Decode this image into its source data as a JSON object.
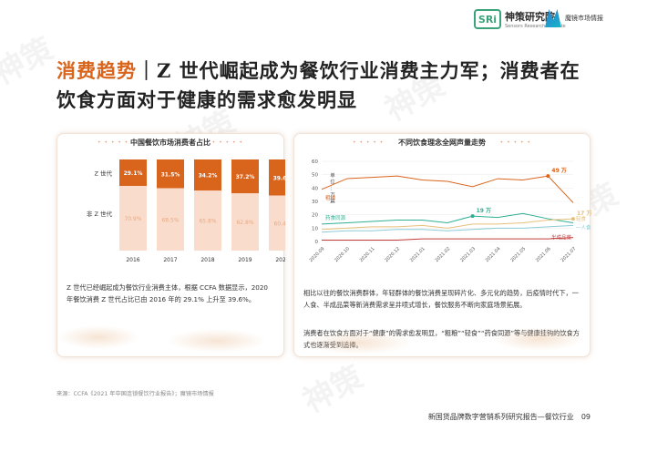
{
  "header": {
    "sr_logo_mark": "SRi",
    "sr_logo_cn": "神策研究院",
    "sr_logo_en": "Sensors Research Institute",
    "mj_logo_cn": "魔镜市场情报"
  },
  "title": {
    "highlight": "消费趋势",
    "separator": "｜",
    "line1_rest": "Z 世代崛起成为餐饮行业消费主力军；消费者在",
    "line2": "饮食方面对于健康的需求愈发明显"
  },
  "left_card": {
    "body": "Z 世代已经崛起成为餐饮行业消费主体，根据 CCFA 数据显示，2020 年餐饮消费 Z 世代占比已由 2016 年的 29.1% 上升至 39.6%。"
  },
  "right_card": {
    "body_p1": "相比以往的餐饮消费群体，年轻群体的餐饮消费呈现碎片化、多元化的趋势，后疫情时代下，一人食、半成品菜等新消费需求呈井喷式增长，餐饮服务不断向家庭场景拓展。",
    "body_p2": "消费者在饮食方面对于“健康”的需求愈发明显，“粗粮”“轻食”“药食同源”等与健康挂钩的饮食方式也逐渐受到追捧。"
  },
  "chart_data": [
    {
      "type": "bar",
      "stacked": true,
      "orientation": "vertical",
      "title": "中国餐饮市场消费者占比",
      "categories": [
        "2016",
        "2017",
        "2018",
        "2019",
        "2020"
      ],
      "series": [
        {
          "name": "Z 世代",
          "values": [
            29.1,
            31.5,
            34.2,
            37.2,
            39.6
          ],
          "labels": [
            "29.1%",
            "31.5%",
            "34.2%",
            "37.2%",
            "39.6%"
          ],
          "color": "#d9641c"
        },
        {
          "name": "非 Z 世代",
          "values": [
            70.9,
            68.5,
            65.8,
            62.8,
            60.4
          ],
          "labels": [
            "70.9%",
            "68.5%",
            "65.8%",
            "62.8%",
            "60.4%"
          ],
          "color": "#f9dccb"
        }
      ],
      "ylim": [
        0,
        100
      ]
    },
    {
      "type": "line",
      "title": "不同饮食理念全网声量走势",
      "y_unit_label": "单位：万篇",
      "y_unit_chars": [
        "单",
        "位",
        "：",
        "万",
        "篇"
      ],
      "ylim": [
        0,
        60
      ],
      "yticks": [
        "0",
        "10",
        "20",
        "30",
        "40",
        "50",
        "60"
      ],
      "x": [
        "2020.09",
        "2020.10",
        "2020.11",
        "2020.12",
        "2021.01",
        "2021.02",
        "2021.03",
        "2021.04",
        "2021.05",
        "2021.06",
        "2021.07"
      ],
      "series": [
        {
          "name": "粗粮",
          "values": [
            39,
            47,
            48,
            49,
            46,
            45,
            41,
            47,
            46,
            49,
            29
          ],
          "color": "#d9641c"
        },
        {
          "name": "药食同源",
          "values": [
            13,
            14,
            15,
            16,
            16,
            14,
            19,
            18,
            21,
            17,
            14
          ],
          "color": "#2fae92"
        },
        {
          "name": "轻食",
          "values": [
            9,
            10,
            11,
            11,
            12,
            10,
            13,
            13,
            14,
            16,
            17
          ],
          "color": "#e6c07a"
        },
        {
          "name": "一人食",
          "values": [
            7,
            8,
            8,
            9,
            9,
            8,
            9,
            10,
            10,
            11,
            12
          ],
          "color": "#8ccbd6"
        },
        {
          "name": "半成品菜",
          "values": [
            1,
            1,
            1,
            1,
            2,
            2,
            2,
            2,
            2,
            2,
            3
          ],
          "color": "#c23b3b"
        }
      ],
      "annotations": [
        {
          "series": "粗粮",
          "x": "2021.06",
          "label": "49 万"
        },
        {
          "series": "药食同源",
          "x": "2021.03",
          "label": "19 万"
        },
        {
          "series": "轻食",
          "x": "2021.07",
          "label": "17 万"
        }
      ]
    }
  ],
  "source": "来源：CCFA《2021 年中国连锁餐饮行业报告》；魔镜市场情报",
  "footer": {
    "report_title": "新国货品牌数字营销系列研究报告—餐饮行业",
    "page_number": "09"
  }
}
